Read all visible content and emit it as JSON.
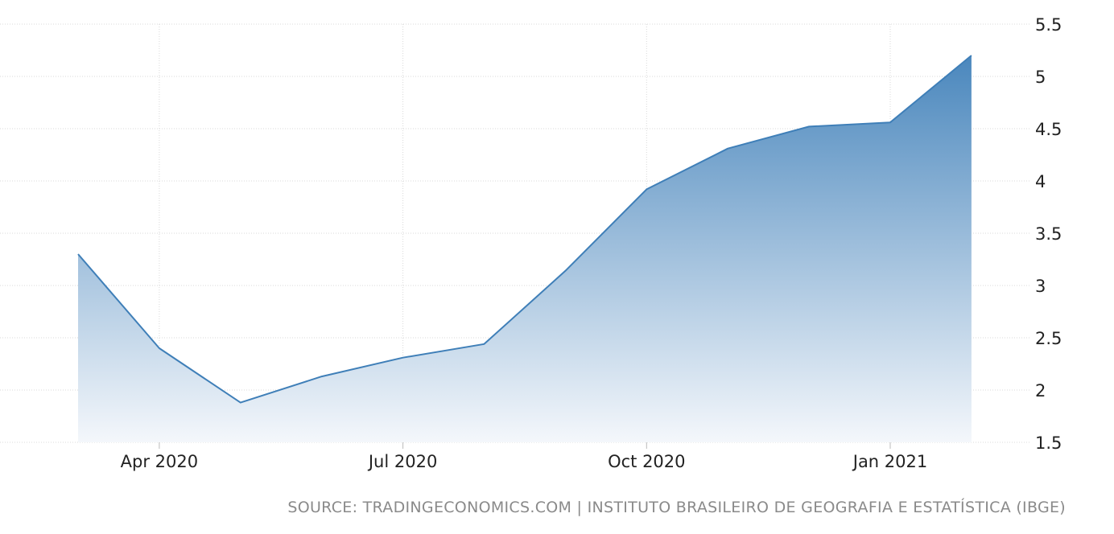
{
  "chart_data": {
    "type": "area",
    "x": [
      "2020-03",
      "2020-04",
      "2020-05",
      "2020-06",
      "2020-07",
      "2020-08",
      "2020-09",
      "2020-10",
      "2020-11",
      "2020-12",
      "2021-01",
      "2021-02"
    ],
    "series": [
      {
        "values": [
          3.3,
          2.4,
          1.88,
          2.13,
          2.31,
          2.44,
          3.14,
          3.92,
          4.31,
          4.52,
          4.56,
          5.2
        ]
      }
    ],
    "ylim": [
      1.5,
      5.5
    ],
    "y_ticks": [
      "5.5",
      "5",
      "4.5",
      "4",
      "3.5",
      "3",
      "2.5",
      "2",
      "1.5"
    ],
    "x_ticks": [
      {
        "label": "Apr 2020",
        "index": 1
      },
      {
        "label": "Jul 2020",
        "index": 4
      },
      {
        "label": "Oct 2020",
        "index": 7
      },
      {
        "label": "Jan 2021",
        "index": 10
      }
    ],
    "y_axis_side": "right",
    "grid": true,
    "colors": {
      "line": "#3f7fb8",
      "fill_top": "#4a87bd",
      "fill_bottom": "#f4f7fb",
      "grid": "#d9d9d9"
    }
  },
  "source_text": "SOURCE: TRADINGECONOMICS.COM | INSTITUTO BRASILEIRO DE GEOGRAFIA E ESTATÍSTICA (IBGE)"
}
